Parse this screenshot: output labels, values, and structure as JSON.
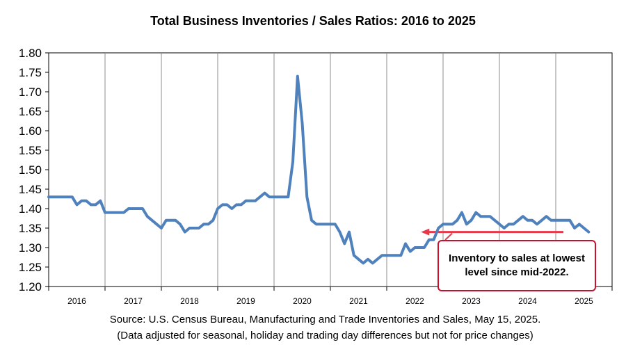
{
  "chart_data": {
    "type": "line",
    "title": "Total Business Inventories / Sales Ratios: 2016 to 2025",
    "xlabel": "",
    "ylabel": "",
    "ylim": [
      1.2,
      1.8
    ],
    "y_ticks": [
      "1.80",
      "1.75",
      "1.70",
      "1.65",
      "1.60",
      "1.55",
      "1.50",
      "1.45",
      "1.40",
      "1.35",
      "1.30",
      "1.25",
      "1.20"
    ],
    "x_tick_labels": [
      "2016",
      "2017",
      "2018",
      "2019",
      "2020",
      "2021",
      "2022",
      "2023",
      "2024",
      "2025"
    ],
    "grid": "vertical lines at year boundaries",
    "line_color": "#4f81bd",
    "series": [
      {
        "values": [
          1.43,
          1.43,
          1.43,
          1.43,
          1.43,
          1.43,
          1.41,
          1.42,
          1.42,
          1.41,
          1.41,
          1.42,
          1.39,
          1.39,
          1.39,
          1.39,
          1.39,
          1.4,
          1.4,
          1.4,
          1.4,
          1.38,
          1.37,
          1.36,
          1.35,
          1.37,
          1.37,
          1.37,
          1.36,
          1.34,
          1.35,
          1.35,
          1.35,
          1.36,
          1.36,
          1.37,
          1.4,
          1.41,
          1.41,
          1.4,
          1.41,
          1.41,
          1.42,
          1.42,
          1.42,
          1.43,
          1.44,
          1.43,
          1.43,
          1.43,
          1.43,
          1.43,
          1.52,
          1.74,
          1.62,
          1.43,
          1.37,
          1.36,
          1.36,
          1.36,
          1.36,
          1.36,
          1.34,
          1.31,
          1.34,
          1.28,
          1.27,
          1.26,
          1.27,
          1.26,
          1.27,
          1.28,
          1.28,
          1.28,
          1.28,
          1.28,
          1.31,
          1.29,
          1.3,
          1.3,
          1.3,
          1.32,
          1.32,
          1.35,
          1.36,
          1.36,
          1.36,
          1.37,
          1.39,
          1.36,
          1.37,
          1.39,
          1.38,
          1.38,
          1.38,
          1.37,
          1.36,
          1.35,
          1.36,
          1.36,
          1.37,
          1.38,
          1.37,
          1.37,
          1.36,
          1.37,
          1.38,
          1.37,
          1.37,
          1.37,
          1.37,
          1.37,
          1.35,
          1.36,
          1.35,
          1.34
        ]
      }
    ],
    "reference_line": {
      "value": 1.34,
      "color": "#e8394a"
    },
    "annotation": "Inventory to sales at lowest level since mid-2022."
  },
  "footnotes": {
    "source": "Source: U.S. Census Bureau, Manufacturing and Trade Inventories and Sales, May 15, 2025.",
    "note": "(Data adjusted for seasonal, holiday and trading day differences but not for price changes)"
  }
}
